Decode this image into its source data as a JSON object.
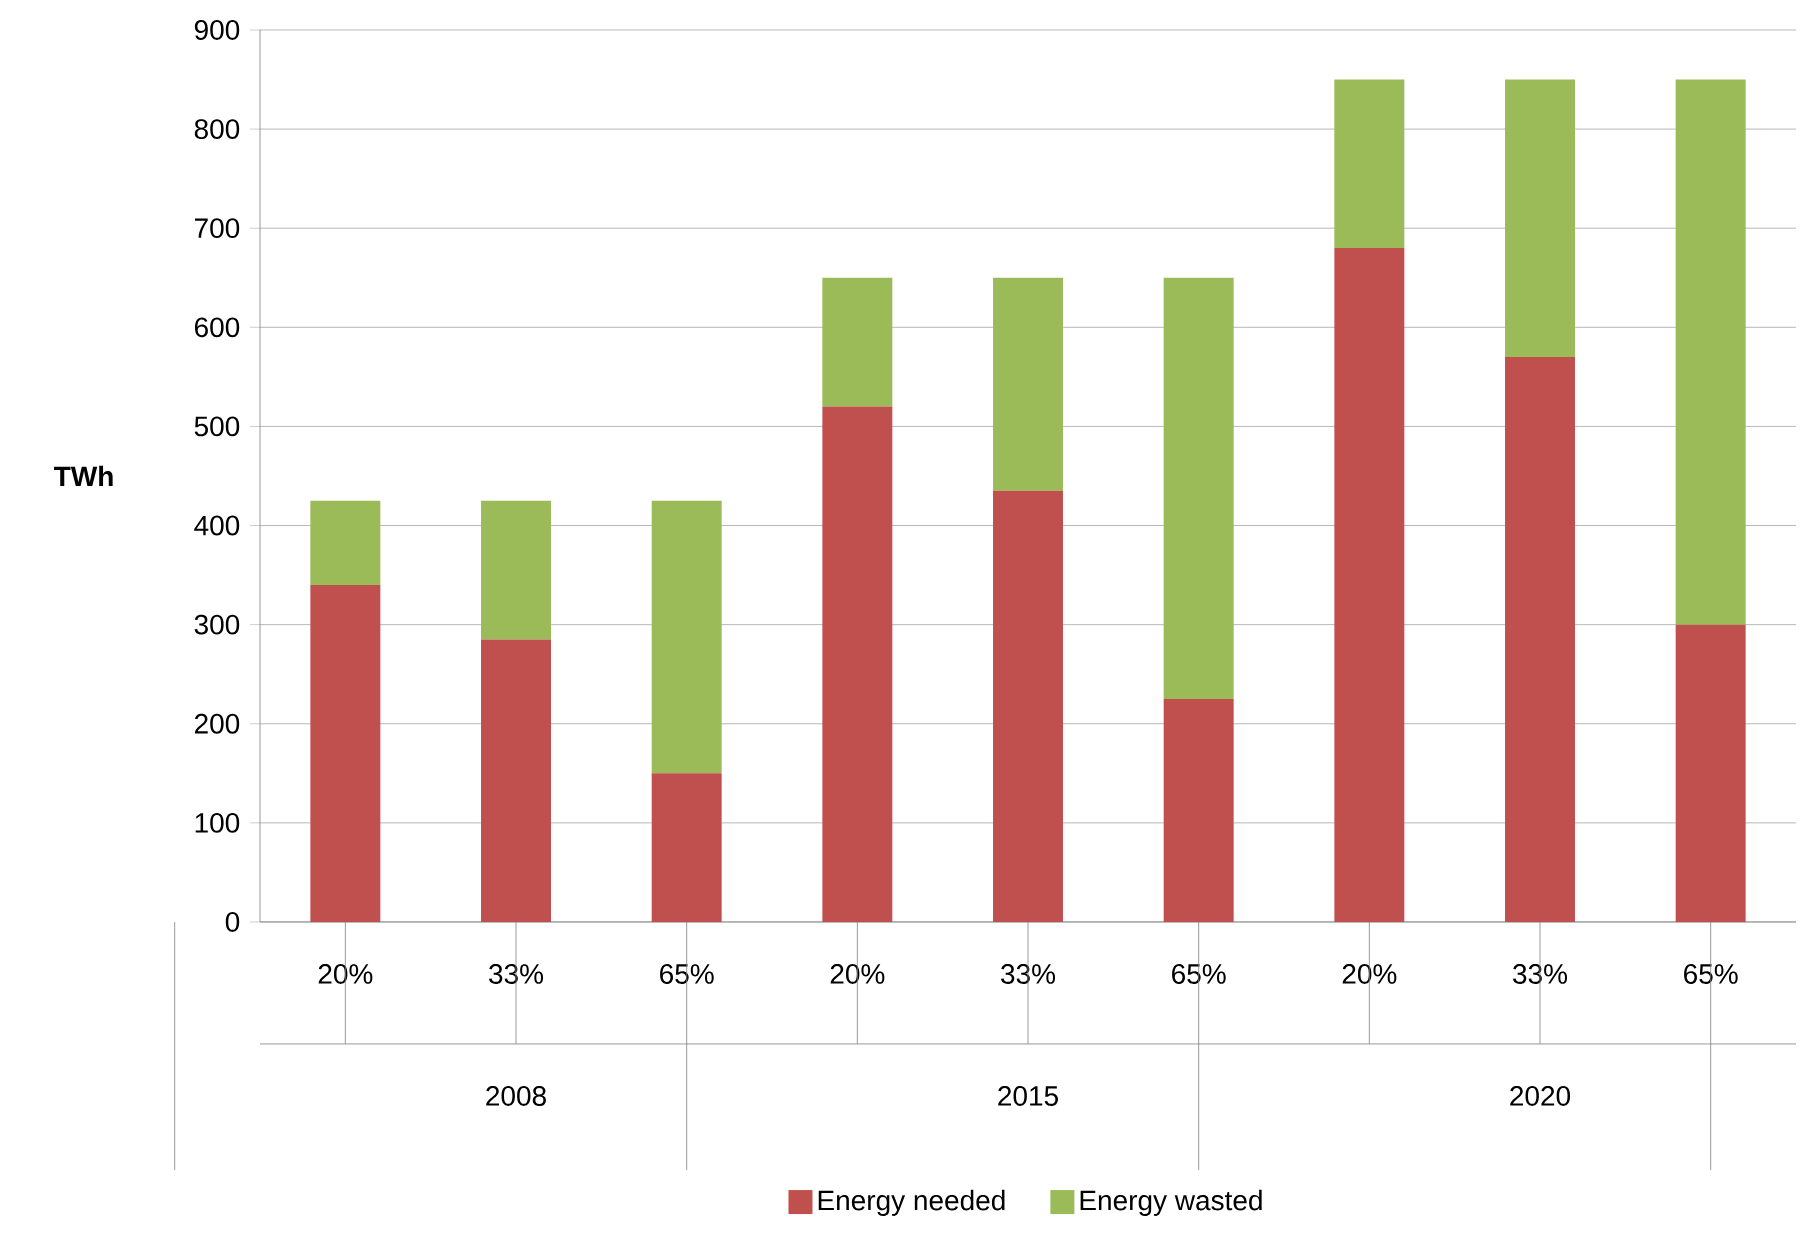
{
  "chart_data": {
    "type": "bar",
    "stacked": true,
    "ylabel": "TWh",
    "categories": [
      "20%",
      "33%",
      "65%",
      "20%",
      "33%",
      "65%",
      "20%",
      "33%",
      "65%"
    ],
    "annotations": [
      "2008",
      "2015",
      "2020"
    ],
    "series": [
      {
        "name": "Energy needed",
        "color": "#c0504d",
        "values": [
          340,
          285,
          150,
          520,
          435,
          225,
          680,
          570,
          300
        ]
      },
      {
        "name": "Energy wasted",
        "color": "#9bbb59",
        "values": [
          85,
          140,
          275,
          130,
          215,
          425,
          170,
          280,
          550
        ]
      }
    ],
    "ylim": [
      0,
      900
    ],
    "yticks": [
      0,
      100,
      200,
      300,
      400,
      500,
      600,
      700,
      800,
      900
    ],
    "grid": "y",
    "legend": "bottom"
  }
}
